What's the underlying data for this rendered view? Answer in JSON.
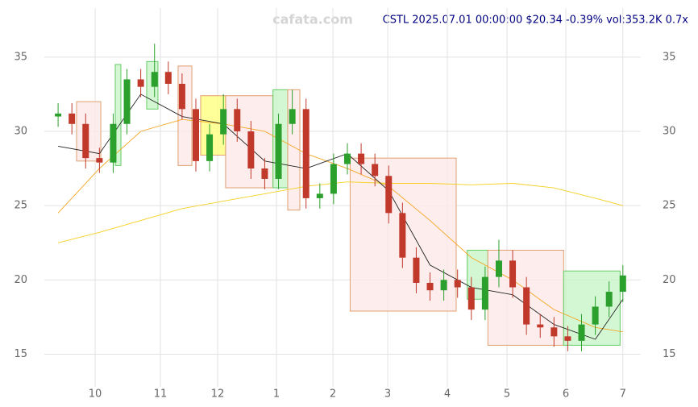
{
  "chart_data": {
    "type": "candlestick",
    "watermark": "cafata.com",
    "title": "CSTL 2025.07.01 00:00:00 $20.34 -0.39% vol:353.2K 0.7x",
    "xlim": [
      -1,
      42.3
    ],
    "ylim": [
      12.8,
      38.3
    ],
    "xticks": [
      {
        "value": 2.69,
        "label": "10"
      },
      {
        "value": 7.43,
        "label": "11"
      },
      {
        "value": 11.58,
        "label": "12"
      },
      {
        "value": 15.85,
        "label": "1"
      },
      {
        "value": 19.95,
        "label": "2"
      },
      {
        "value": 23.93,
        "label": "3"
      },
      {
        "value": 28.26,
        "label": "4"
      },
      {
        "value": 32.59,
        "label": "5"
      },
      {
        "value": 36.86,
        "label": "6"
      },
      {
        "value": 41.0,
        "label": "7"
      }
    ],
    "yticks": [
      15,
      20,
      25,
      30,
      35
    ],
    "grid": true,
    "up_color": "#2ca02c",
    "down_color": "#c0392b",
    "x": [
      0,
      1,
      2,
      3,
      4,
      5,
      6,
      7,
      8,
      9,
      10,
      11,
      12,
      13,
      14,
      15,
      16,
      17,
      18,
      19,
      20,
      21,
      22,
      23,
      24,
      25,
      26,
      27,
      28,
      29,
      30,
      31,
      32,
      33,
      34,
      35,
      36,
      37,
      38,
      39,
      40,
      41
    ],
    "open": [
      31.0,
      31.2,
      30.5,
      28.2,
      27.9,
      30.5,
      33.5,
      33.0,
      34.0,
      33.2,
      31.5,
      28.0,
      29.8,
      31.5,
      30.0,
      27.5,
      26.8,
      30.5,
      31.5,
      25.5,
      25.8,
      27.8,
      28.5,
      27.8,
      27.0,
      24.5,
      21.5,
      19.8,
      19.3,
      20.0,
      19.5,
      18.0,
      20.2,
      21.3,
      19.5,
      17.0,
      16.8,
      16.2,
      15.9,
      17.0,
      18.2,
      19.2
    ],
    "high": [
      31.9,
      31.9,
      31.2,
      28.9,
      31.2,
      34.2,
      34.2,
      35.9,
      34.7,
      33.9,
      32.2,
      30.5,
      32.5,
      32.2,
      30.7,
      28.2,
      31.2,
      32.8,
      32.2,
      26.5,
      28.5,
      29.2,
      29.2,
      28.5,
      27.7,
      25.2,
      22.2,
      20.5,
      20.7,
      20.7,
      20.2,
      20.9,
      22.7,
      22.0,
      20.2,
      17.7,
      17.5,
      16.9,
      17.7,
      18.9,
      19.9,
      21.0
    ],
    "low": [
      30.3,
      29.8,
      27.5,
      27.2,
      27.2,
      29.8,
      32.3,
      32.3,
      32.5,
      30.8,
      27.3,
      27.3,
      29.1,
      29.3,
      26.8,
      26.1,
      26.1,
      29.8,
      24.8,
      24.8,
      25.1,
      27.1,
      27.1,
      26.3,
      23.8,
      20.8,
      19.1,
      18.6,
      18.6,
      18.8,
      17.3,
      17.3,
      19.5,
      18.8,
      16.3,
      16.1,
      15.5,
      15.2,
      15.2,
      16.3,
      17.5,
      18.5
    ],
    "close": [
      31.2,
      30.5,
      28.2,
      27.9,
      30.5,
      33.5,
      33.0,
      34.0,
      33.2,
      31.5,
      28.0,
      29.8,
      31.5,
      30.0,
      27.5,
      26.8,
      30.5,
      31.5,
      25.5,
      25.8,
      27.8,
      28.5,
      27.8,
      27.0,
      24.5,
      21.5,
      19.8,
      19.3,
      20.0,
      19.5,
      18.0,
      20.2,
      21.3,
      19.5,
      17.0,
      16.8,
      16.2,
      15.9,
      17.0,
      18.2,
      19.2,
      20.3
    ],
    "lines": [
      {
        "color": "#f5a623",
        "x": [
          0,
          3,
          6,
          9,
          12,
          15,
          18,
          21,
          24,
          27,
          30,
          33,
          36,
          39,
          41
        ],
        "values": [
          24.5,
          27.5,
          30.0,
          30.8,
          30.5,
          30.0,
          28.5,
          27.5,
          26.3,
          24.0,
          21.5,
          20.0,
          18.0,
          16.8,
          16.5
        ]
      },
      {
        "color": "#f5d020",
        "x": [
          0,
          3,
          6,
          9,
          12,
          15,
          18,
          21,
          24,
          27,
          30,
          33,
          36,
          39,
          41
        ],
        "values": [
          22.5,
          23.2,
          24.0,
          24.8,
          25.3,
          25.8,
          26.3,
          26.6,
          26.5,
          26.5,
          26.4,
          26.5,
          26.2,
          25.5,
          25.0
        ]
      },
      {
        "color": "#222222",
        "x": [
          0,
          3,
          6,
          9,
          12,
          15,
          18,
          21,
          24,
          27,
          30,
          33,
          36,
          39,
          41
        ],
        "values": [
          29.0,
          28.5,
          32.5,
          31.0,
          30.5,
          28.0,
          27.5,
          28.5,
          26.0,
          21.0,
          19.5,
          19.0,
          17.0,
          16.0,
          18.7
        ]
      }
    ],
    "zones": [
      {
        "x0": 1.34,
        "x1": 3.1,
        "y0": 28.0,
        "y1": 32.0,
        "color": "#fde8e8"
      },
      {
        "x0": 4.15,
        "x1": 4.56,
        "y0": 27.7,
        "y1": 34.5,
        "color": "#c8f5c8"
      },
      {
        "x0": 6.43,
        "x1": 7.25,
        "y0": 31.5,
        "y1": 34.7,
        "color": "#c8f5c8"
      },
      {
        "x0": 8.71,
        "x1": 9.71,
        "y0": 27.7,
        "y1": 34.4,
        "color": "#fde8e8"
      },
      {
        "x0": 10.35,
        "x1": 12.16,
        "y0": 28.4,
        "y1": 32.4,
        "color": "#ffff80"
      },
      {
        "x0": 12.16,
        "x1": 15.6,
        "y0": 26.2,
        "y1": 32.4,
        "color": "#fde8e8"
      },
      {
        "x0": 15.6,
        "x1": 16.67,
        "y0": 26.2,
        "y1": 32.8,
        "color": "#c8f5c8"
      },
      {
        "x0": 16.67,
        "x1": 17.55,
        "y0": 24.7,
        "y1": 32.8,
        "color": "#fde8e8"
      },
      {
        "x0": 21.2,
        "x1": 28.9,
        "y0": 17.9,
        "y1": 28.2,
        "color": "#fde8e8"
      },
      {
        "x0": 29.7,
        "x1": 31.2,
        "y0": 18.7,
        "y1": 22.0,
        "color": "#c8f5c8"
      },
      {
        "x0": 31.2,
        "x1": 36.7,
        "y0": 15.6,
        "y1": 22.0,
        "color": "#fde8e8"
      },
      {
        "x0": 36.7,
        "x1": 40.8,
        "y0": 15.6,
        "y1": 20.6,
        "color": "#c8f5c8"
      }
    ]
  }
}
